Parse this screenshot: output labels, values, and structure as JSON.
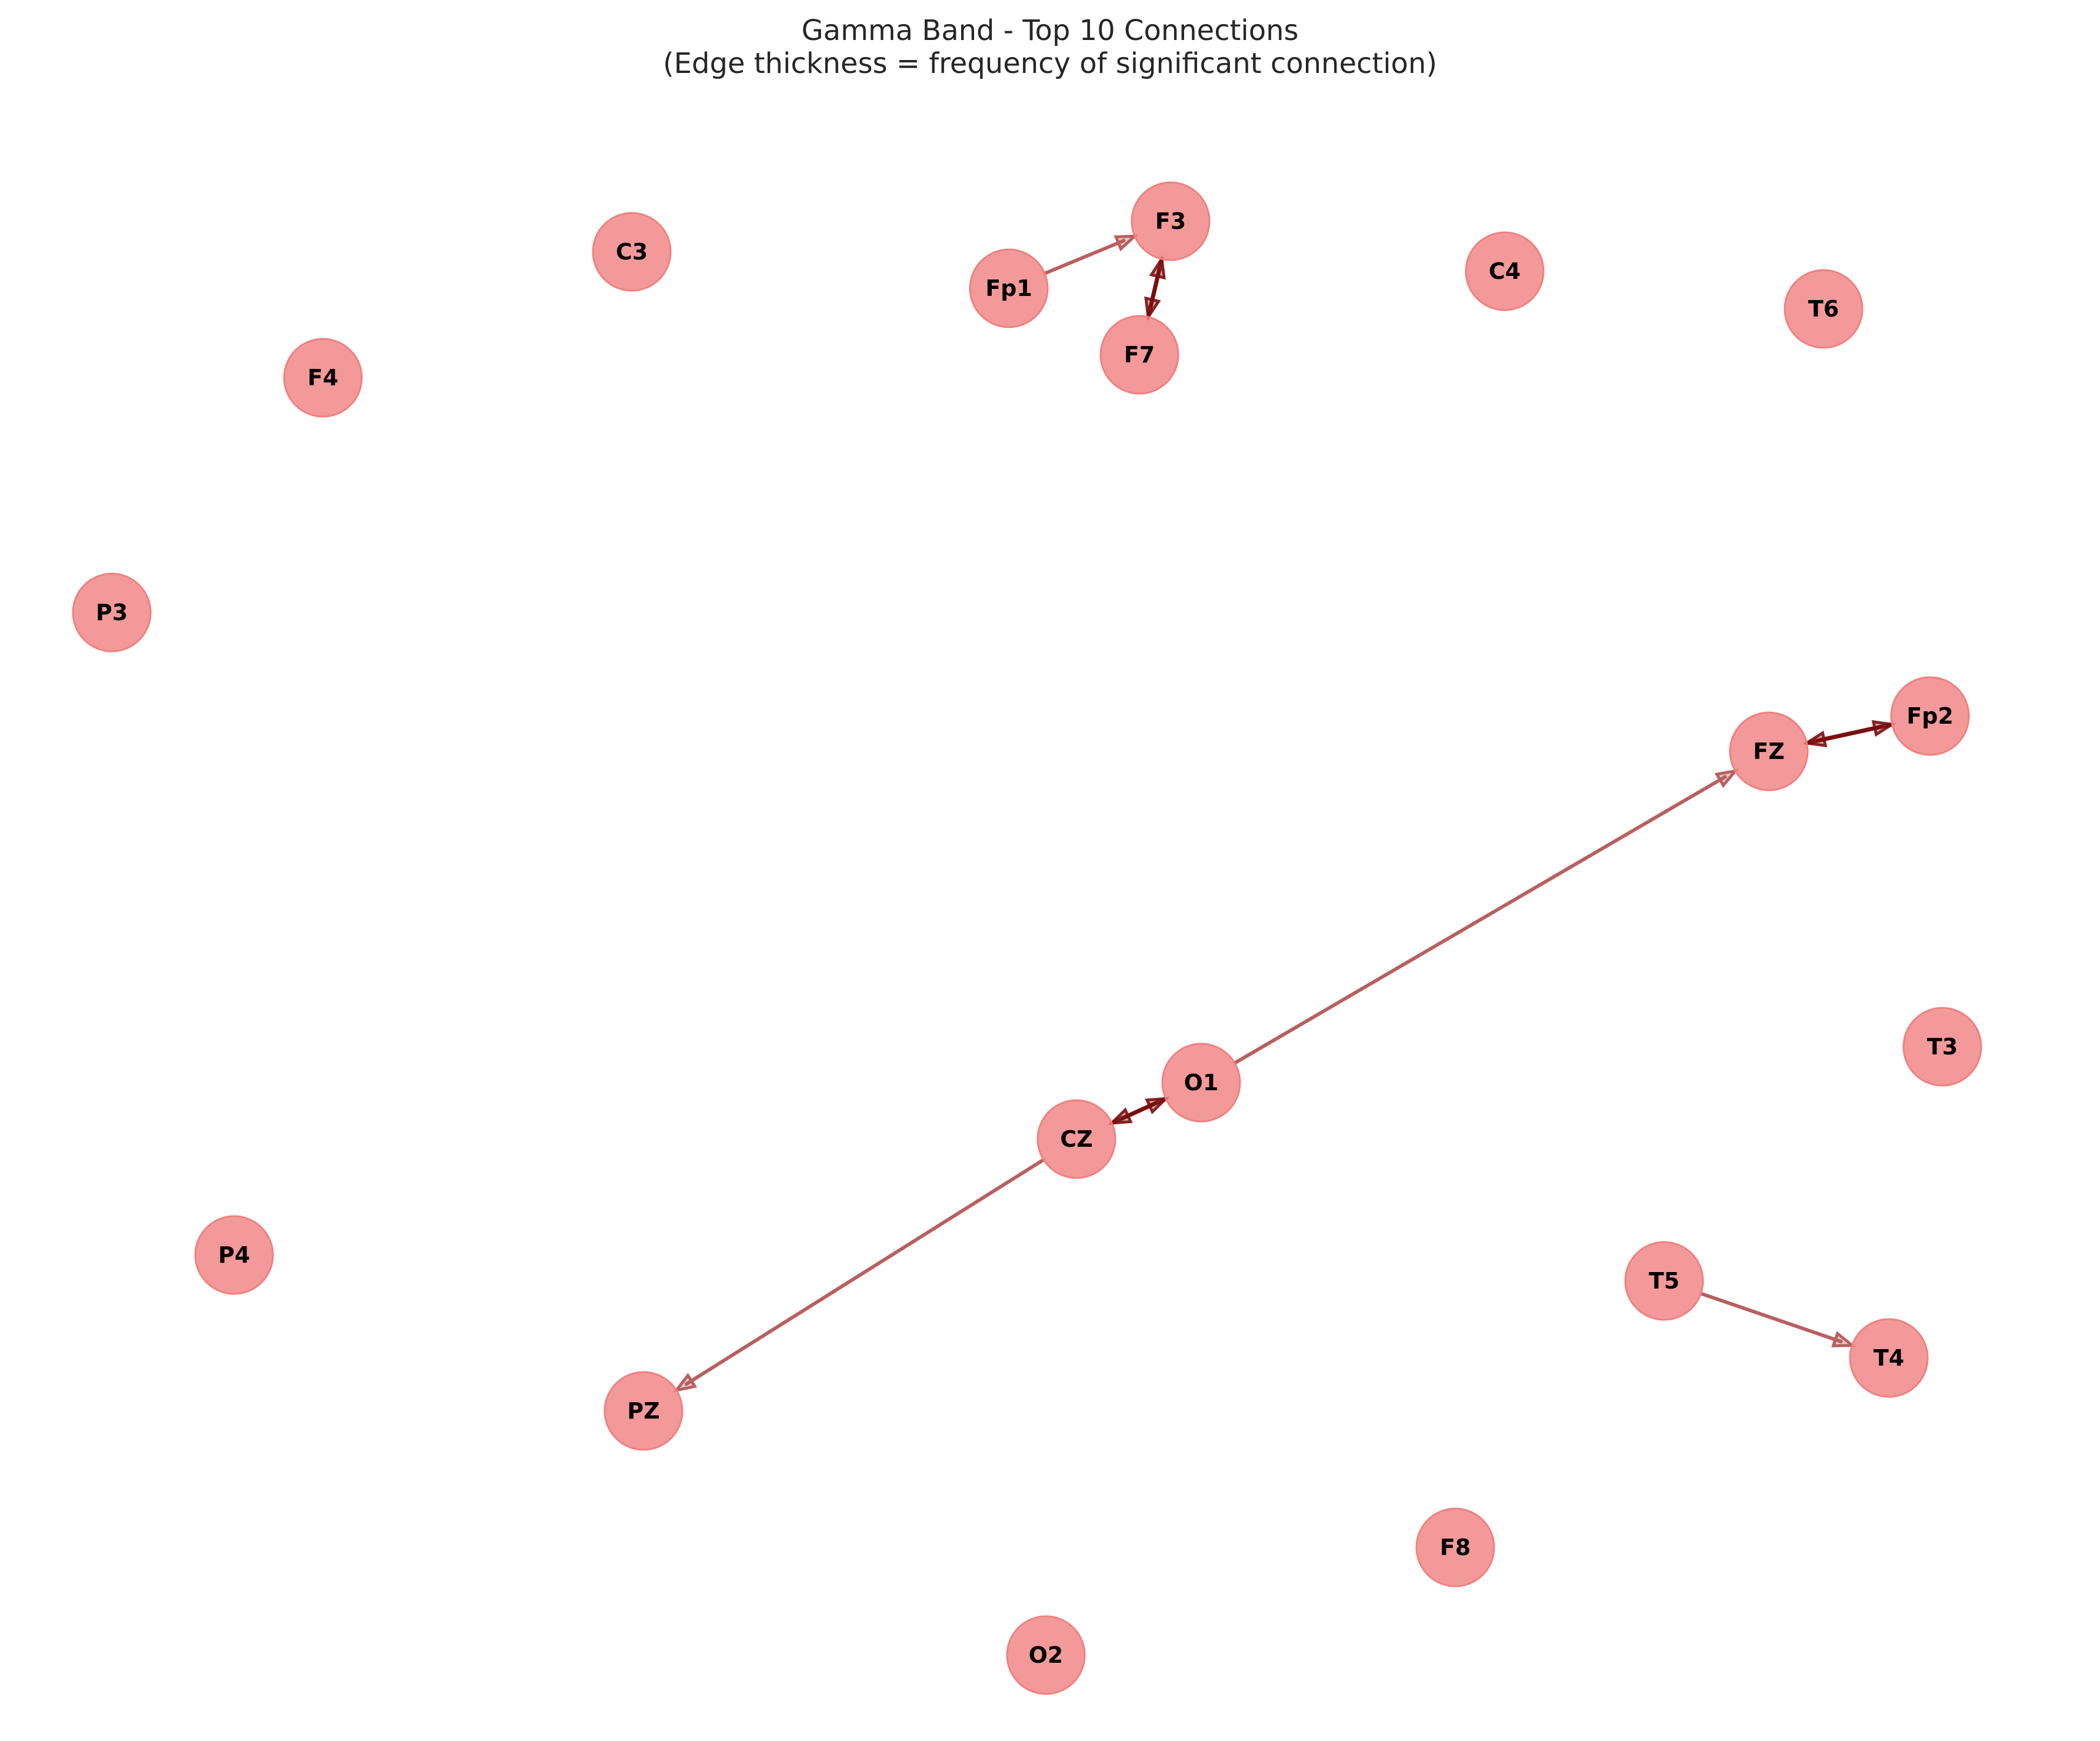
{
  "title": {
    "line1": "Gamma Band - Top 10 Connections",
    "line2": "(Edge thickness = frequency of significant connection)"
  },
  "colors": {
    "node_fill": "#f08080",
    "edge_light": "#a83838",
    "edge_dark": "#7a0c0c"
  },
  "nodes": [
    {
      "id": "F3",
      "label": "F3"
    },
    {
      "id": "C3",
      "label": "C3"
    },
    {
      "id": "Fp1",
      "label": "Fp1"
    },
    {
      "id": "C4",
      "label": "C4"
    },
    {
      "id": "T6",
      "label": "T6"
    },
    {
      "id": "F7",
      "label": "F7"
    },
    {
      "id": "F4",
      "label": "F4"
    },
    {
      "id": "P3",
      "label": "P3"
    },
    {
      "id": "Fp2",
      "label": "Fp2"
    },
    {
      "id": "FZ",
      "label": "FZ"
    },
    {
      "id": "T3",
      "label": "T3"
    },
    {
      "id": "O1",
      "label": "O1"
    },
    {
      "id": "CZ",
      "label": "CZ"
    },
    {
      "id": "P4",
      "label": "P4"
    },
    {
      "id": "T5",
      "label": "T5"
    },
    {
      "id": "T4",
      "label": "T4"
    },
    {
      "id": "PZ",
      "label": "PZ"
    },
    {
      "id": "F8",
      "label": "F8"
    },
    {
      "id": "O2",
      "label": "O2"
    }
  ],
  "edges": [
    {
      "source": "Fp1",
      "target": "F3",
      "weight": 1
    },
    {
      "source": "F3",
      "target": "F7",
      "weight": 2
    },
    {
      "source": "F7",
      "target": "F3",
      "weight": 2
    },
    {
      "source": "Fp2",
      "target": "FZ",
      "weight": 2
    },
    {
      "source": "FZ",
      "target": "Fp2",
      "weight": 2
    },
    {
      "source": "O1",
      "target": "FZ",
      "weight": 1
    },
    {
      "source": "O1",
      "target": "CZ",
      "weight": 2
    },
    {
      "source": "CZ",
      "target": "O1",
      "weight": 2
    },
    {
      "source": "CZ",
      "target": "PZ",
      "weight": 1
    },
    {
      "source": "T5",
      "target": "T4",
      "weight": 1
    }
  ]
}
